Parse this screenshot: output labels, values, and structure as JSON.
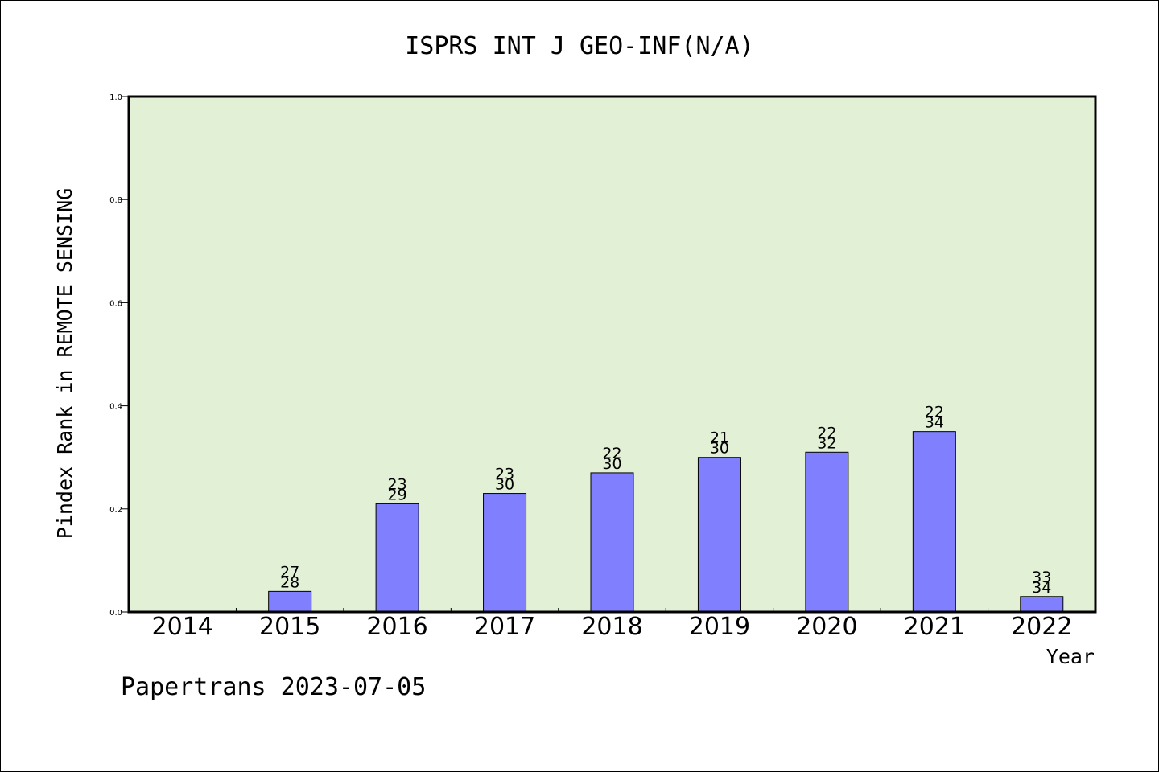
{
  "colors": {
    "plot_background": "#e2f0d6",
    "bar_fill": "#8080ff",
    "frame": "#000000"
  },
  "footer": {
    "text": "Papertrans 2023-07-05"
  },
  "chart_data": {
    "type": "bar",
    "title": "ISPRS INT J GEO-INF(N/A)",
    "xlabel": "Year",
    "ylabel": "Pindex Rank in REMOTE SENSING",
    "ylim": [
      0,
      1.0
    ],
    "yticks": [
      "0.0",
      "0.2",
      "0.4",
      "0.6",
      "0.8",
      "1.0"
    ],
    "grid": false,
    "categories": [
      "2014",
      "2015",
      "2016",
      "2017",
      "2018",
      "2019",
      "2020",
      "2021",
      "2022"
    ],
    "values": [
      null,
      0.04,
      0.21,
      0.23,
      0.27,
      0.3,
      0.31,
      0.35,
      0.03
    ],
    "labels_top": [
      "",
      "27",
      "23",
      "23",
      "22",
      "21",
      "22",
      "22",
      "33"
    ],
    "labels_bottom": [
      "",
      "28",
      "29",
      "30",
      "30",
      "30",
      "32",
      "34",
      "34"
    ]
  }
}
